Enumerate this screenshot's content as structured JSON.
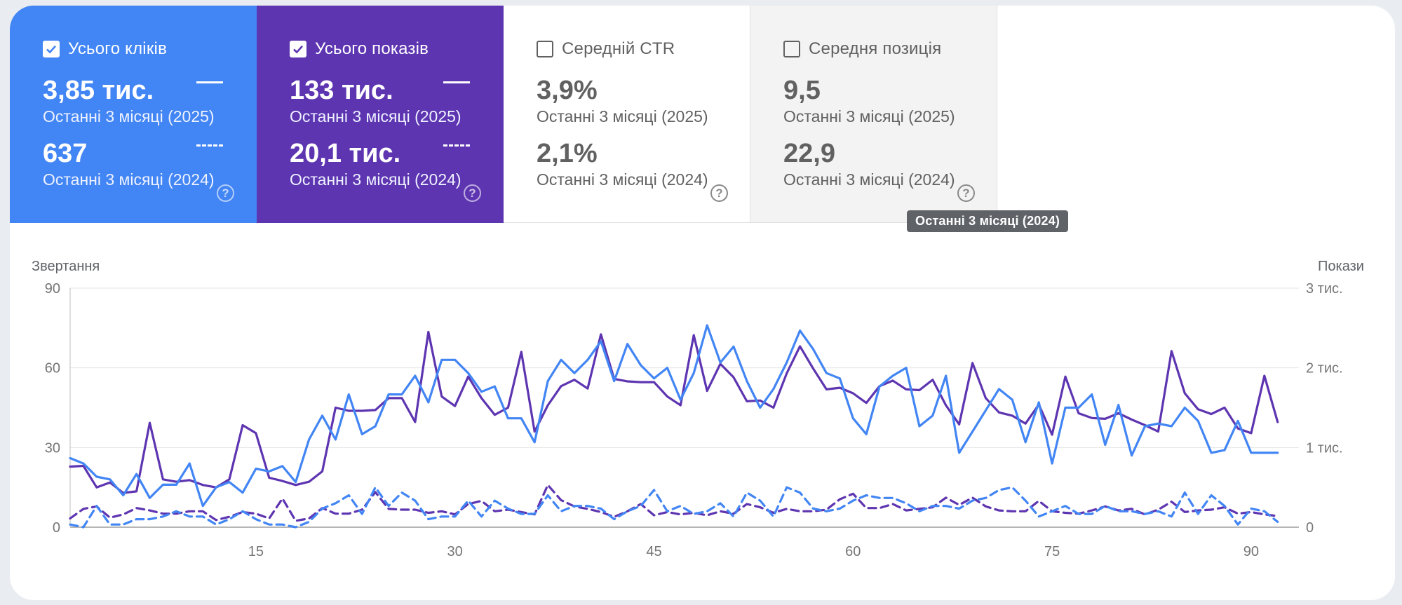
{
  "metrics": [
    {
      "id": "clicks",
      "title": "Усього кліків",
      "checked": true,
      "value_current": "3,85 тис.",
      "period_current": "Останні 3 місяці (2025)",
      "value_previous": "637",
      "period_previous": "Останні 3 місяці (2024)",
      "color": "#4285f4"
    },
    {
      "id": "impressions",
      "title": "Усього показів",
      "checked": true,
      "value_current": "133 тис.",
      "period_current": "Останні 3 місяці (2025)",
      "value_previous": "20,1 тис.",
      "period_previous": "Останні 3 місяці (2024)",
      "color": "#5e35b1"
    },
    {
      "id": "ctr",
      "title": "Середній CTR",
      "checked": false,
      "value_current": "3,9%",
      "period_current": "Останні 3 місяці (2025)",
      "value_previous": "2,1%",
      "period_previous": "Останні 3 місяці (2024)",
      "color": "#ffffff"
    },
    {
      "id": "position",
      "title": "Середня позиція",
      "checked": false,
      "value_current": "9,5",
      "period_current": "Останні 3 місяці (2025)",
      "value_previous": "22,9",
      "period_previous": "Останні 3 місяці (2024)",
      "color": "#f3f3f3"
    }
  ],
  "tooltip": "Останні 3 місяці (2024)",
  "icons": {
    "checkbox_checked": "check-icon",
    "help": "help-circle-icon"
  },
  "chart_data": {
    "type": "line",
    "y_left_label": "Звертання",
    "y_right_label": "Покази",
    "y_left_ticks": [
      "0",
      "30",
      "60",
      "90"
    ],
    "y_right_ticks": [
      "0",
      "1 тис.",
      "2 тис.",
      "3 тис."
    ],
    "x_ticks": [
      "15",
      "30",
      "45",
      "60",
      "75",
      "90"
    ],
    "ylim_left": [
      0,
      90
    ],
    "ylim_right": [
      0,
      3000
    ],
    "x_range": [
      1,
      92
    ],
    "grid": true,
    "series": [
      {
        "axis": "left",
        "color": "#4285f4",
        "dashed": false,
        "values": [
          26,
          24,
          19,
          18,
          12,
          20,
          11,
          16,
          16,
          24,
          8,
          15,
          17,
          13,
          22,
          21,
          23,
          17,
          33,
          42,
          33,
          50,
          35,
          38,
          50,
          50,
          57,
          47,
          63,
          63,
          58,
          51,
          53,
          41,
          41,
          32,
          55,
          63,
          58,
          63,
          70,
          55,
          69,
          61,
          56,
          60,
          48,
          58,
          76,
          62,
          68,
          55,
          45,
          52,
          62,
          74,
          67,
          58,
          56,
          41,
          35,
          53,
          57,
          60,
          38,
          42,
          57,
          28,
          36,
          44,
          52,
          48,
          32,
          47,
          24,
          45,
          45,
          50,
          31,
          46,
          27,
          38,
          39,
          38,
          45,
          40,
          28,
          29,
          40,
          28,
          28,
          28
        ]
      },
      {
        "axis": "right",
        "color": "#5e35b1",
        "dashed": false,
        "values": [
          760,
          770,
          500,
          560,
          430,
          450,
          1310,
          600,
          570,
          590,
          530,
          500,
          600,
          1280,
          1180,
          620,
          580,
          530,
          570,
          700,
          1500,
          1460,
          1460,
          1470,
          1620,
          1620,
          1320,
          2450,
          1640,
          1520,
          1890,
          1620,
          1410,
          1500,
          2200,
          1200,
          1530,
          1770,
          1850,
          1740,
          2420,
          1860,
          1830,
          1820,
          1820,
          1640,
          1530,
          2410,
          1710,
          2050,
          1880,
          1580,
          1590,
          1500,
          1930,
          2270,
          1990,
          1730,
          1750,
          1680,
          1560,
          1770,
          1840,
          1730,
          1720,
          1850,
          1530,
          1290,
          2060,
          1620,
          1440,
          1400,
          1300,
          1540,
          1160,
          1890,
          1430,
          1370,
          1360,
          1430,
          1350,
          1280,
          1200,
          2210,
          1680,
          1480,
          1420,
          1500,
          1240,
          1180,
          1900,
          1320
        ]
      },
      {
        "axis": "left",
        "color": "#4285f4",
        "dashed": true,
        "values": [
          1,
          0,
          8,
          1,
          1,
          3,
          3,
          4,
          6,
          4,
          4,
          1,
          3,
          6,
          3,
          1,
          1,
          0,
          2,
          7,
          9,
          12,
          5,
          15,
          8,
          13,
          10,
          3,
          4,
          4,
          10,
          4,
          10,
          7,
          5,
          5,
          12,
          6,
          8,
          8,
          7,
          3,
          6,
          8,
          14,
          6,
          8,
          5,
          6,
          9,
          4,
          13,
          10,
          4,
          15,
          13,
          7,
          6,
          7,
          10,
          12,
          11,
          11,
          9,
          6,
          8,
          8,
          7,
          10,
          11,
          14,
          15,
          10,
          4,
          6,
          8,
          5,
          5,
          8,
          6,
          6,
          5,
          6,
          4,
          13,
          5,
          12,
          8,
          1,
          7,
          6,
          2
        ]
      },
      {
        "axis": "right",
        "color": "#5e35b1",
        "dashed": true,
        "values": [
          110,
          230,
          260,
          120,
          160,
          240,
          210,
          170,
          170,
          200,
          200,
          90,
          130,
          190,
          170,
          110,
          360,
          80,
          110,
          240,
          170,
          170,
          220,
          440,
          230,
          220,
          220,
          180,
          200,
          160,
          290,
          330,
          200,
          220,
          190,
          160,
          530,
          340,
          260,
          230,
          190,
          130,
          200,
          290,
          150,
          190,
          160,
          180,
          150,
          200,
          170,
          290,
          250,
          180,
          230,
          200,
          200,
          220,
          350,
          420,
          240,
          240,
          290,
          210,
          230,
          250,
          370,
          280,
          370,
          260,
          210,
          200,
          200,
          330,
          200,
          180,
          170,
          210,
          260,
          210,
          230,
          160,
          220,
          320,
          190,
          210,
          220,
          250,
          170,
          190,
          160,
          140
        ]
      }
    ]
  }
}
